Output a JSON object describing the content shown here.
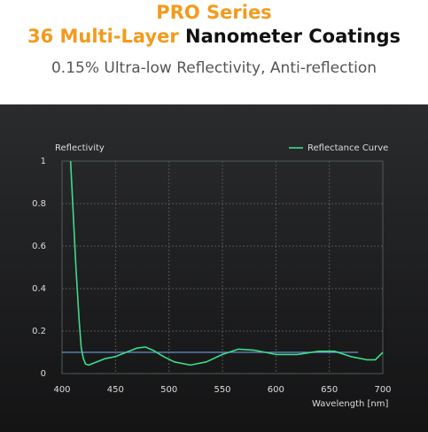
{
  "header": {
    "title_line1": "PRO Series",
    "title_line2_accent": "36 Multi-Layer",
    "title_line2_rest": "Nanometer Coatings",
    "subtitle": "0.15% Ultra-low Reflectivity, Anti-reflection"
  },
  "chart_data": {
    "type": "line",
    "y_label": "Reflectivity",
    "x_label": "Wavelength [nm]",
    "x": [
      408,
      410,
      413,
      416,
      418,
      420,
      422,
      425,
      430,
      440,
      450,
      460,
      470,
      478,
      485,
      495,
      505,
      520,
      535,
      550,
      565,
      580,
      600,
      620,
      640,
      655,
      670,
      685,
      693,
      700
    ],
    "series": [
      {
        "name": "Reflectance Curve",
        "color": "#3ddc8c",
        "values": [
          1,
          0.8,
          0.5,
          0.25,
          0.12,
          0.07,
          0.045,
          0.04,
          0.05,
          0.07,
          0.08,
          0.1,
          0.12,
          0.125,
          0.11,
          0.08,
          0.055,
          0.04,
          0.055,
          0.09,
          0.115,
          0.11,
          0.09,
          0.09,
          0.105,
          0.105,
          0.08,
          0.065,
          0.065,
          0.1
        ]
      }
    ],
    "hline": {
      "value": 0.1,
      "x": [
        400,
        677
      ],
      "color": "#6a8fd0"
    },
    "xlim": [
      400,
      700
    ],
    "xticks": [
      400,
      450,
      500,
      550,
      600,
      650,
      700
    ],
    "ylim": [
      0,
      1
    ],
    "yticks": [
      0,
      0.2,
      0.4,
      0.6,
      0.8,
      1
    ],
    "grid": true,
    "legend": "top-right"
  }
}
